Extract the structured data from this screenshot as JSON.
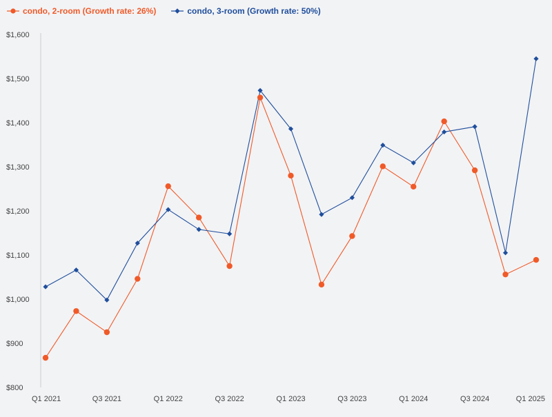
{
  "chart_data": {
    "type": "line",
    "title": "",
    "xlabel": "",
    "ylabel": "",
    "x": [
      "Q1 2021",
      "Q2 2021",
      "Q3 2021",
      "Q4 2021",
      "Q1 2022",
      "Q2 2022",
      "Q3 2022",
      "Q4 2022",
      "Q1 2023",
      "Q2 2023",
      "Q3 2023",
      "Q4 2023",
      "Q1 2024",
      "Q2 2024",
      "Q3 2024",
      "Q4 2024",
      "Q1 2025"
    ],
    "x_tick_labels": [
      "Q1 2021",
      "",
      "Q3 2021",
      "",
      "Q1 2022",
      "",
      "Q3 2022",
      "",
      "Q1 2023",
      "",
      "Q3 2023",
      "",
      "Q1 2024",
      "",
      "Q3 2024",
      "",
      "Q1 2025"
    ],
    "ylim": [
      800,
      1600
    ],
    "y_ticks": [
      800,
      900,
      1000,
      1100,
      1200,
      1300,
      1400,
      1500,
      1600
    ],
    "y_tick_labels": [
      "$800",
      "$900",
      "$1,000",
      "$1,100",
      "$1,200",
      "$1,300",
      "$1,400",
      "$1,500",
      "$1,600"
    ],
    "grid": false,
    "legend_position": "top-left",
    "series": [
      {
        "name": "condo, 2-room (Growth rate: 26%)",
        "color": "#f05a28",
        "marker": "circle",
        "values": [
          867,
          973,
          925,
          1046,
          1256,
          1185,
          1075,
          1457,
          1280,
          1033,
          1143,
          1301,
          1255,
          1403,
          1292,
          1056,
          1089
        ]
      },
      {
        "name": "condo, 3-room (Growth rate: 50%)",
        "color": "#1f4e9c",
        "marker": "diamond",
        "values": [
          1028,
          1066,
          998,
          1127,
          1203,
          1158,
          1148,
          1473,
          1386,
          1192,
          1230,
          1349,
          1309,
          1379,
          1391,
          1105,
          1545
        ]
      }
    ]
  }
}
